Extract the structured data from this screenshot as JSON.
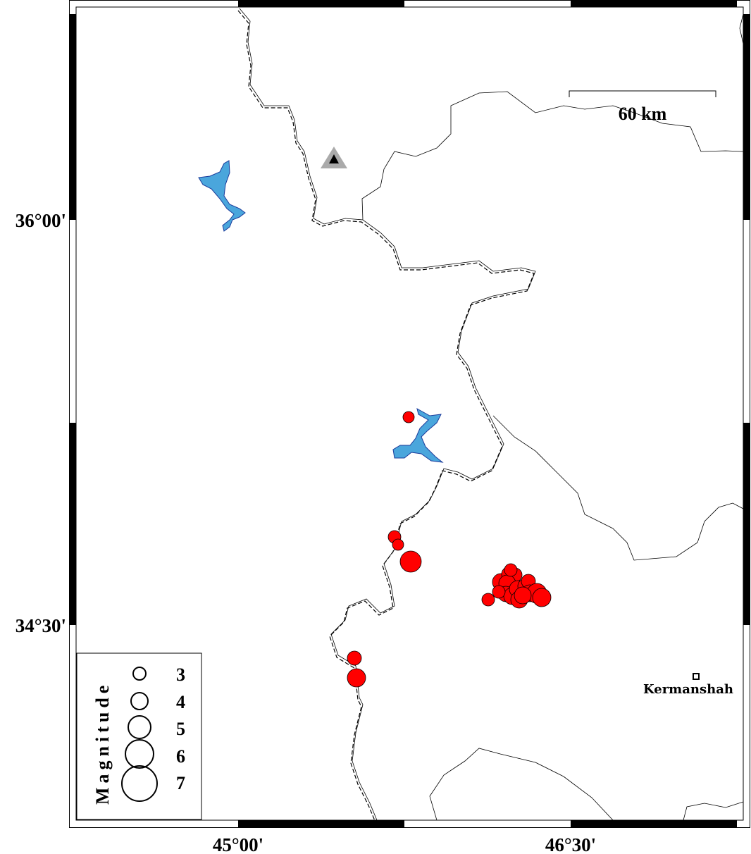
{
  "map": {
    "axis_labels": {
      "left": [
        "36°00'",
        "34°30'"
      ],
      "bottom": [
        "45°00'",
        "46°30'"
      ]
    },
    "scale_bar": {
      "label": "60 km"
    },
    "city": {
      "name": "Kermanshah"
    },
    "station_marker": {
      "icon": "triangle-icon",
      "color": "#aaaaaa"
    },
    "colors": {
      "earthquake": "#ff0000",
      "lake": "#4aa6dc",
      "lake_outline": "#1a3a9a"
    },
    "legend": {
      "title": "Magnitude",
      "entries": [
        "3",
        "4",
        "5",
        "6",
        "7"
      ]
    }
  }
}
